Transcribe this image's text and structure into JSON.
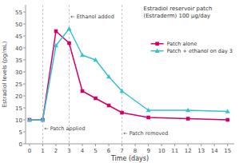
{
  "chart_data": {
    "type": "line",
    "title": "Estradiol reservoir patch",
    "subtitle": "(Estraderm) 100 µg/day",
    "x_label": "Time (days)",
    "y_label": "Estradiol levels (pg/mL)",
    "x": [
      0,
      1,
      2,
      3,
      4,
      5,
      6,
      7,
      9,
      12,
      15
    ],
    "series": [
      {
        "name": "Patch alone",
        "color": "#d4006a",
        "marker": "square",
        "values": [
          10,
          10,
          47,
          42,
          22,
          19,
          16,
          13,
          11,
          10.5,
          10
        ]
      },
      {
        "name": "Patch + ethanol on day 3",
        "color": "#3bbfce",
        "marker": "triangle",
        "values": [
          10,
          10,
          41,
          48,
          37,
          35,
          28,
          22,
          14,
          14,
          13.5
        ]
      }
    ],
    "vlines": [
      1,
      3,
      7
    ],
    "annotations": [
      {
        "text": "← Ethanol added",
        "x": 3.1,
        "y": 53
      },
      {
        "text": "← Patch applied",
        "x": 1.1,
        "y": 6.5
      },
      {
        "text": "← Patch removed",
        "x": 7.1,
        "y": 4.5
      }
    ],
    "xlim": [
      -0.3,
      15.5
    ],
    "ylim": [
      0,
      58
    ],
    "xticks": [
      0,
      1,
      2,
      3,
      4,
      5,
      6,
      7,
      8,
      9,
      10,
      11,
      12,
      13,
      14,
      15
    ],
    "yticks": [
      0,
      5,
      10,
      15,
      20,
      25,
      30,
      35,
      40,
      45,
      50,
      55
    ],
    "grid": false,
    "legend": "upper right"
  }
}
